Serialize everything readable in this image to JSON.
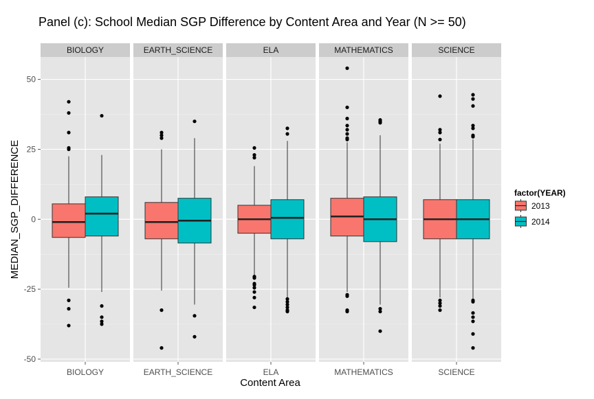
{
  "chart_data": {
    "type": "boxplot",
    "title": "Panel (c):  School Median SGP Difference by Content Area and Year (N >= 50)",
    "xlabel": "Content Area",
    "ylabel": "MEDIAN_SGP_DIFFERENCE",
    "ylim": [
      -51,
      58
    ],
    "yticks": [
      50,
      25,
      0,
      -25,
      -50
    ],
    "ytick_labels": [
      "50",
      "25",
      "0",
      "-25",
      "-50"
    ],
    "grid": true,
    "legend_title": "factor(YEAR)",
    "legend_position": "right",
    "series_colors": {
      "2013": "#F8766D",
      "2014": "#00BFC4"
    },
    "series": [
      {
        "name": "2013"
      },
      {
        "name": "2014"
      }
    ],
    "panels": [
      {
        "label": "BIOLOGY",
        "boxes": [
          {
            "year": "2013",
            "q1": -6.5,
            "median": -1,
            "q3": 5.5,
            "lower": -24.5,
            "upper": 22.5,
            "outliers": [
              42,
              38,
              31,
              25.5,
              25,
              -29,
              -32,
              -38
            ]
          },
          {
            "year": "2014",
            "q1": -6,
            "median": 2,
            "q3": 8,
            "lower": -26,
            "upper": 23,
            "outliers": [
              37,
              -31,
              -35,
              -36.5,
              -37.5
            ]
          }
        ]
      },
      {
        "label": "EARTH_SCIENCE",
        "boxes": [
          {
            "year": "2013",
            "q1": -7,
            "median": -1,
            "q3": 6,
            "lower": -25.5,
            "upper": 25,
            "outliers": [
              31,
              30,
              29,
              -32.5,
              -46
            ]
          },
          {
            "year": "2014",
            "q1": -8.5,
            "median": -0.5,
            "q3": 7.5,
            "lower": -30.5,
            "upper": 29,
            "outliers": [
              35,
              -34.5,
              -42
            ]
          }
        ]
      },
      {
        "label": "ELA",
        "boxes": [
          {
            "year": "2013",
            "q1": -5,
            "median": 0,
            "q3": 5,
            "lower": -20,
            "upper": 19,
            "outliers": [
              25.5,
              23,
              22,
              -20.5,
              -21,
              -23,
              -23.5,
              -24.5,
              -26,
              -28,
              -31.5
            ]
          },
          {
            "year": "2014",
            "q1": -7,
            "median": 0.5,
            "q3": 7,
            "lower": -28,
            "upper": 28,
            "outliers": [
              32.5,
              30.5,
              -28.5,
              -29.5,
              -30.5,
              -31.5,
              -32.5,
              -33
            ]
          }
        ]
      },
      {
        "label": "MATHEMATICS",
        "boxes": [
          {
            "year": "2013",
            "q1": -6,
            "median": 1,
            "q3": 7.5,
            "lower": -26,
            "upper": 27.5,
            "outliers": [
              54,
              40,
              36,
              33.5,
              32,
              30.5,
              29,
              28.5,
              -27,
              -27.5,
              -32.5,
              -33
            ]
          },
          {
            "year": "2014",
            "q1": -8,
            "median": 0,
            "q3": 8,
            "lower": -30.5,
            "upper": 30,
            "outliers": [
              35.5,
              35,
              34.5,
              -32,
              -33,
              -40
            ]
          }
        ]
      },
      {
        "label": "SCIENCE",
        "boxes": [
          {
            "year": "2013",
            "q1": -7,
            "median": 0,
            "q3": 7,
            "lower": -28,
            "upper": 27,
            "outliers": [
              44,
              32,
              31,
              28.5,
              -29,
              -30,
              -31,
              -32.5
            ]
          },
          {
            "year": "2014",
            "q1": -7,
            "median": 0,
            "q3": 7,
            "lower": -28.5,
            "upper": 28.5,
            "outliers": [
              44.5,
              43,
              40.5,
              33.5,
              32.5,
              30,
              29.5,
              -29,
              -29.5,
              -33.5,
              -35,
              -36.5,
              -41,
              -46
            ]
          }
        ]
      }
    ]
  }
}
